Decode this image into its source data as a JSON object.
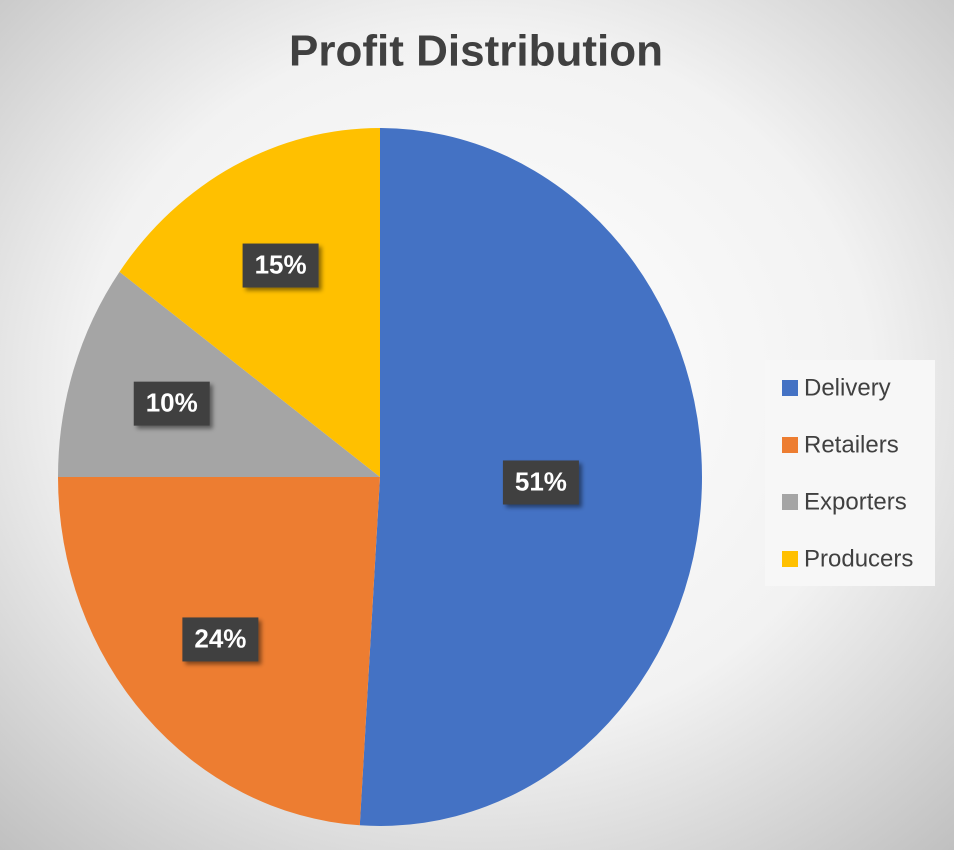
{
  "chart_data": {
    "type": "pie",
    "title": "Profit Distribution",
    "categories": [
      "Delivery",
      "Retailers",
      "Exporters",
      "Producers"
    ],
    "values": [
      51,
      24,
      10,
      15
    ],
    "value_labels": [
      "51%",
      "24%",
      "10%",
      "15%"
    ],
    "colors": [
      "#4472c4",
      "#ed7d31",
      "#a5a5a5",
      "#ffc000"
    ],
    "legend": "right"
  }
}
